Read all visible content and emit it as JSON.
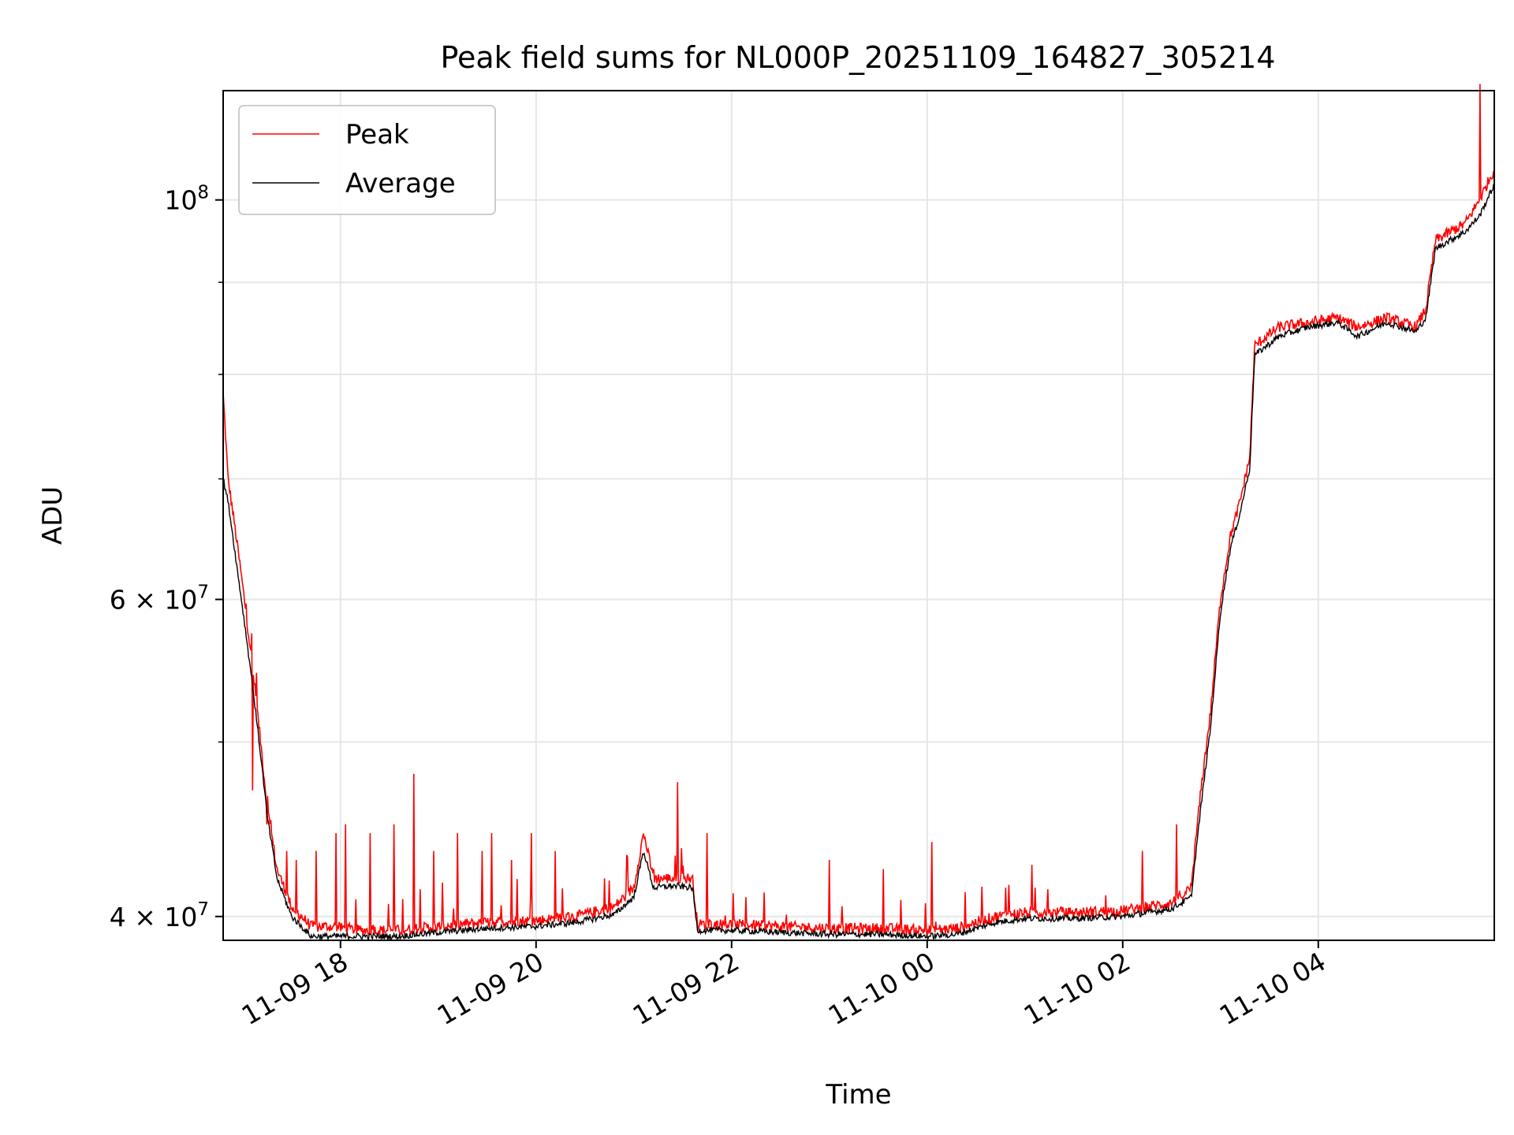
{
  "chart_data": {
    "type": "line",
    "title": "Peak field sums for NL000P_20251109_164827_305214",
    "xlabel": "Time",
    "ylabel": "ADU",
    "yscale": "log",
    "xlim_hours": [
      16.8,
      29.8
    ],
    "ylim": [
      38800000,
      115000000
    ],
    "grid": true,
    "legend_position": "upper-left",
    "x_ticks": [
      {
        "hour": 18,
        "label": "11-09 18"
      },
      {
        "hour": 20,
        "label": "11-09 20"
      },
      {
        "hour": 22,
        "label": "11-09 22"
      },
      {
        "hour": 24,
        "label": "11-10 00"
      },
      {
        "hour": 26,
        "label": "11-10 02"
      },
      {
        "hour": 28,
        "label": "11-10 04"
      }
    ],
    "y_major_ticks": [
      {
        "value": 40000000,
        "base": "4 × 10",
        "exp": "7"
      },
      {
        "value": 60000000,
        "base": "6 × 10",
        "exp": "7"
      },
      {
        "value": 100000000,
        "base": "10",
        "exp": "8"
      }
    ],
    "y_minor_ticks": [
      50000000,
      70000000,
      80000000,
      90000000
    ],
    "series": [
      {
        "name": "Peak",
        "color": "#ff0000",
        "baseline": [
          [
            16.8,
            78000000
          ],
          [
            16.85,
            70000000
          ],
          [
            16.95,
            64000000
          ],
          [
            17.05,
            58000000
          ],
          [
            17.15,
            52000000
          ],
          [
            17.25,
            46000000
          ],
          [
            17.35,
            42500000
          ],
          [
            17.5,
            40500000
          ],
          [
            17.7,
            39500000
          ],
          [
            17.9,
            39500000
          ],
          [
            18.2,
            39300000
          ],
          [
            18.6,
            39300000
          ],
          [
            19.0,
            39500000
          ],
          [
            19.5,
            39700000
          ],
          [
            20.0,
            39800000
          ],
          [
            20.4,
            40000000
          ],
          [
            20.8,
            40500000
          ],
          [
            21.0,
            41500000
          ],
          [
            21.1,
            44500000
          ],
          [
            21.2,
            42000000
          ],
          [
            21.4,
            42000000
          ],
          [
            21.6,
            42000000
          ],
          [
            21.65,
            39600000
          ],
          [
            22.0,
            39600000
          ],
          [
            22.5,
            39500000
          ],
          [
            23.0,
            39400000
          ],
          [
            23.5,
            39400000
          ],
          [
            24.0,
            39300000
          ],
          [
            24.3,
            39400000
          ],
          [
            24.7,
            40000000
          ],
          [
            25.0,
            40200000
          ],
          [
            25.5,
            40200000
          ],
          [
            26.0,
            40300000
          ],
          [
            26.5,
            40700000
          ],
          [
            26.7,
            41500000
          ],
          [
            26.8,
            47000000
          ],
          [
            26.9,
            52000000
          ],
          [
            27.0,
            60000000
          ],
          [
            27.1,
            65000000
          ],
          [
            27.2,
            68000000
          ],
          [
            27.3,
            72000000
          ],
          [
            27.35,
            83000000
          ],
          [
            27.6,
            85000000
          ],
          [
            27.9,
            85500000
          ],
          [
            28.2,
            86000000
          ],
          [
            28.4,
            85000000
          ],
          [
            28.7,
            86000000
          ],
          [
            29.0,
            85000000
          ],
          [
            29.1,
            87000000
          ],
          [
            29.2,
            95000000
          ],
          [
            29.5,
            97000000
          ],
          [
            29.65,
            100000000
          ],
          [
            29.8,
            104000000
          ]
        ],
        "spikes": [
          [
            17.1,
            47000000
          ],
          [
            17.25,
            45000000
          ],
          [
            17.45,
            43500000
          ],
          [
            17.55,
            43000000
          ],
          [
            17.75,
            43500000
          ],
          [
            17.95,
            44500000
          ],
          [
            18.05,
            45000000
          ],
          [
            18.3,
            44500000
          ],
          [
            18.55,
            45000000
          ],
          [
            18.75,
            48000000
          ],
          [
            18.95,
            43500000
          ],
          [
            19.2,
            44500000
          ],
          [
            19.45,
            43500000
          ],
          [
            19.55,
            44500000
          ],
          [
            19.75,
            43000000
          ],
          [
            19.95,
            44500000
          ],
          [
            20.2,
            43500000
          ],
          [
            20.7,
            42000000
          ],
          [
            21.2,
            42500000
          ],
          [
            21.45,
            47500000
          ],
          [
            21.75,
            44500000
          ],
          [
            22.15,
            41000000
          ],
          [
            23.0,
            43000000
          ],
          [
            23.55,
            42500000
          ],
          [
            24.05,
            44000000
          ],
          [
            24.8,
            41500000
          ],
          [
            25.1,
            41500000
          ],
          [
            26.2,
            43500000
          ],
          [
            26.55,
            45000000
          ],
          [
            29.65,
            116000000
          ]
        ]
      },
      {
        "name": "Average",
        "color": "#000000",
        "baseline": [
          [
            16.8,
            70000000
          ],
          [
            16.85,
            68000000
          ],
          [
            16.95,
            62000000
          ],
          [
            17.05,
            56500000
          ],
          [
            17.15,
            51000000
          ],
          [
            17.25,
            45500000
          ],
          [
            17.35,
            42000000
          ],
          [
            17.5,
            40000000
          ],
          [
            17.7,
            39000000
          ],
          [
            17.9,
            39000000
          ],
          [
            18.2,
            39000000
          ],
          [
            18.6,
            39000000
          ],
          [
            19.0,
            39200000
          ],
          [
            19.5,
            39400000
          ],
          [
            20.0,
            39500000
          ],
          [
            20.4,
            39700000
          ],
          [
            20.8,
            40100000
          ],
          [
            21.0,
            41000000
          ],
          [
            21.1,
            43500000
          ],
          [
            21.2,
            41500000
          ],
          [
            21.4,
            41600000
          ],
          [
            21.6,
            41500000
          ],
          [
            21.65,
            39300000
          ],
          [
            22.0,
            39300000
          ],
          [
            22.5,
            39200000
          ],
          [
            23.0,
            39100000
          ],
          [
            23.5,
            39100000
          ],
          [
            24.0,
            39000000
          ],
          [
            24.3,
            39100000
          ],
          [
            24.7,
            39700000
          ],
          [
            25.0,
            39900000
          ],
          [
            25.5,
            39900000
          ],
          [
            26.0,
            40000000
          ],
          [
            26.5,
            40400000
          ],
          [
            26.7,
            41000000
          ],
          [
            26.8,
            46000000
          ],
          [
            26.9,
            51000000
          ],
          [
            27.0,
            59000000
          ],
          [
            27.1,
            64000000
          ],
          [
            27.2,
            67000000
          ],
          [
            27.3,
            71000000
          ],
          [
            27.35,
            82000000
          ],
          [
            27.6,
            84000000
          ],
          [
            27.9,
            85000000
          ],
          [
            28.2,
            85500000
          ],
          [
            28.4,
            84000000
          ],
          [
            28.7,
            85500000
          ],
          [
            29.0,
            84500000
          ],
          [
            29.1,
            86000000
          ],
          [
            29.2,
            94000000
          ],
          [
            29.5,
            96000000
          ],
          [
            29.65,
            98000000
          ],
          [
            29.8,
            102000000
          ]
        ]
      }
    ]
  }
}
